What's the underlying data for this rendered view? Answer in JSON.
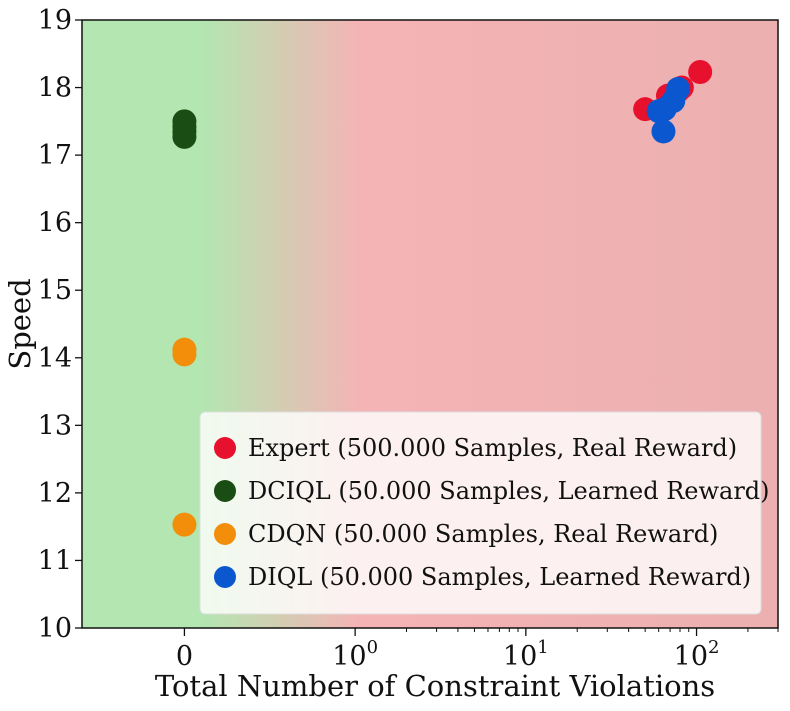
{
  "chart_data": {
    "type": "scatter",
    "title": "",
    "xlabel": "Total Number of Constraint Violations",
    "ylabel": "Speed",
    "x_scale": "symlog",
    "xlim": [
      -0.6,
      300
    ],
    "ylim": [
      10,
      19
    ],
    "x_ticks": [
      {
        "value": 0,
        "label": "0",
        "exp": ""
      },
      {
        "value": 1,
        "label": "10",
        "exp": "0"
      },
      {
        "value": 10,
        "label": "10",
        "exp": "1"
      },
      {
        "value": 100,
        "label": "10",
        "exp": "2"
      }
    ],
    "y_ticks": [
      10,
      11,
      12,
      13,
      14,
      15,
      16,
      17,
      18,
      19
    ],
    "background": {
      "safe_zone": "0 violations (green)",
      "unsafe_zone": "violations > 0 (red)",
      "safe_color": "#b3e6b0",
      "unsafe_color": "#f5b3b5"
    },
    "legend_position": "lower-right",
    "series": [
      {
        "name": "Expert (500.000 Samples, Real Reward)",
        "color": "#e8112d",
        "points": [
          [
            50,
            17.68
          ],
          [
            68,
            17.88
          ],
          [
            78,
            17.95
          ],
          [
            82,
            18.0
          ],
          [
            105,
            18.23
          ]
        ]
      },
      {
        "name": "DCIQL (50.000 Samples, Learned Reward)",
        "color": "#1a4d14",
        "points": [
          [
            0,
            17.5
          ],
          [
            0,
            17.42
          ],
          [
            0,
            17.35
          ],
          [
            0,
            17.27
          ]
        ]
      },
      {
        "name": "CDQN (50.000 Samples, Real Reward)",
        "color": "#f28e0a",
        "points": [
          [
            0,
            14.12
          ],
          [
            0,
            14.05
          ],
          [
            0,
            11.53
          ]
        ]
      },
      {
        "name": "DIQL (50.000 Samples, Learned Reward)",
        "color": "#0b57d0",
        "points": [
          [
            60,
            17.65
          ],
          [
            65,
            17.68
          ],
          [
            73,
            17.8
          ],
          [
            78,
            17.98
          ],
          [
            64,
            17.35
          ]
        ]
      }
    ]
  }
}
